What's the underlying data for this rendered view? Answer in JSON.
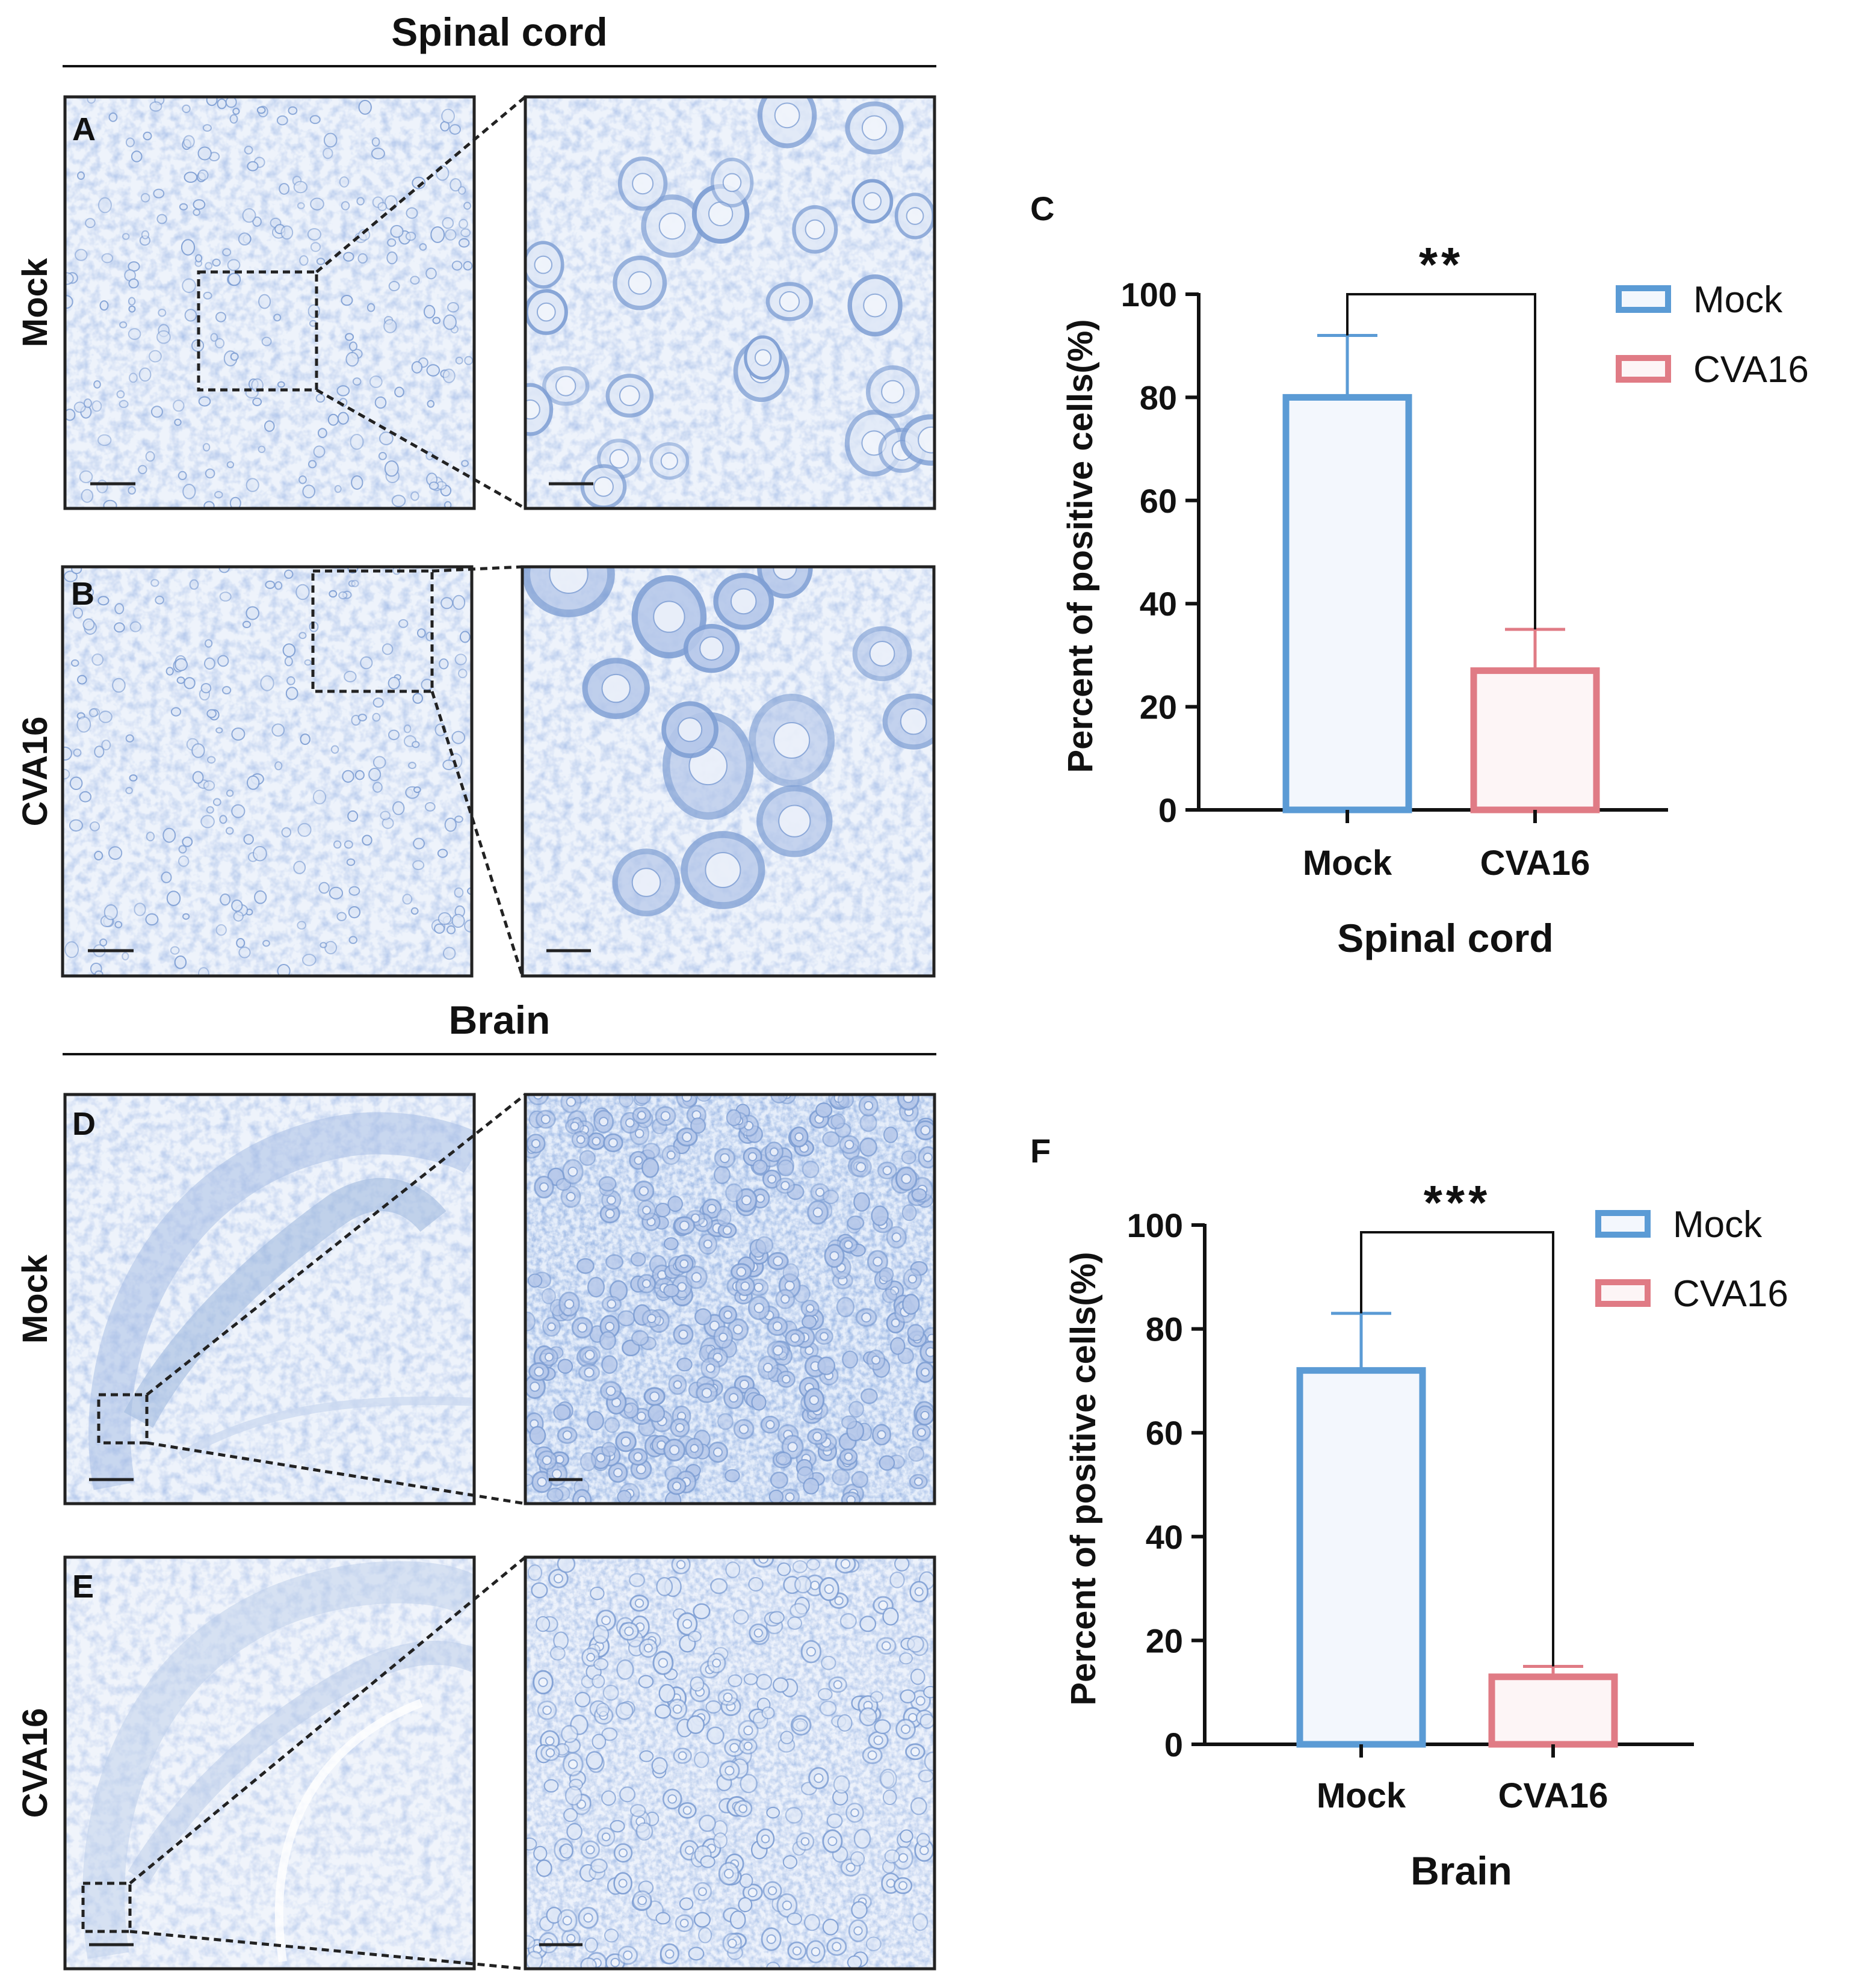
{
  "panel_left": {
    "spinal_section_title": "Spinal cord",
    "brain_section_title": "Brain",
    "row_labels": {
      "a": "Mock",
      "b": "CVA16",
      "d": "Mock",
      "e": "CVA16"
    },
    "panel_letters": {
      "a": "A",
      "b": "B",
      "d": "D",
      "e": "E"
    }
  },
  "colors": {
    "mock": "#5b9bd5",
    "mock_fill": "#f3f7fd",
    "cva16": "#e07b85",
    "cva16_fill": "#fdf5f6",
    "stain": "#7f9fd4",
    "stain_bg": "#e9f0fb",
    "axis": "#111111"
  },
  "chart_data": [
    {
      "type": "bar",
      "panel_letter": "C",
      "title": "",
      "xlabel": "Spinal cord",
      "ylabel": "Percent of  positive cells(%)",
      "categories": [
        "Mock",
        "CVA16"
      ],
      "values": [
        80,
        27
      ],
      "errors": [
        12,
        8
      ],
      "ylim": [
        0,
        100
      ],
      "yticks": [
        "0",
        "20",
        "40",
        "60",
        "80",
        "100"
      ],
      "significance": "**",
      "legend": [
        "Mock",
        "CVA16"
      ],
      "legend_position": "top-right",
      "grid": false
    },
    {
      "type": "bar",
      "panel_letter": "F",
      "title": "",
      "xlabel": "Brain",
      "ylabel": "Percent of  positive cells(%)",
      "categories": [
        "Mock",
        "CVA16"
      ],
      "values": [
        72,
        13
      ],
      "errors": [
        11,
        2
      ],
      "ylim": [
        0,
        100
      ],
      "yticks": [
        "0",
        "20",
        "40",
        "60",
        "80",
        "100"
      ],
      "significance": "***",
      "legend": [
        "Mock",
        "CVA16"
      ],
      "legend_position": "top-right",
      "grid": false
    }
  ]
}
